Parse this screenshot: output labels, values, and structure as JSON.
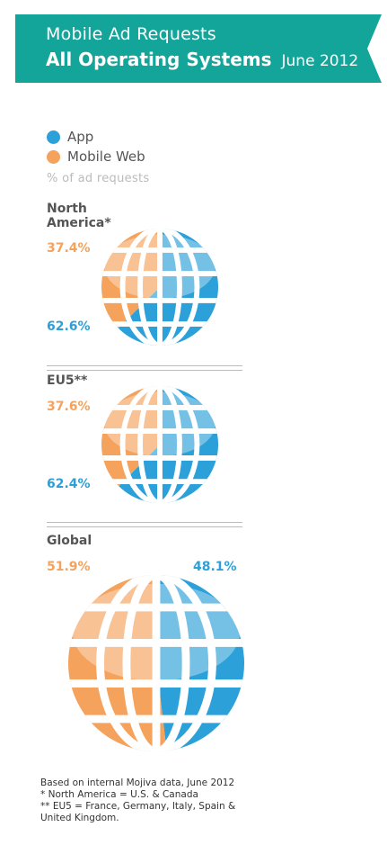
{
  "header": {
    "line1": "Mobile Ad Requests",
    "line2": "All Operating Systems",
    "date": "June 2012",
    "color": "#13a59a"
  },
  "legend": {
    "items": [
      {
        "label": "App",
        "color": "#2ca0d8"
      },
      {
        "label": "Mobile Web",
        "color": "#f5a25c"
      }
    ],
    "note": "% of ad requests"
  },
  "chart_data": [
    {
      "type": "pie",
      "title": "North America*",
      "categories": [
        "Mobile Web",
        "App"
      ],
      "values": [
        37.4,
        62.6
      ],
      "labels": [
        "37.4%",
        "62.6%"
      ]
    },
    {
      "type": "pie",
      "title": "EU5**",
      "categories": [
        "Mobile Web",
        "App"
      ],
      "values": [
        37.6,
        62.4
      ],
      "labels": [
        "37.6%",
        "62.4%"
      ]
    },
    {
      "type": "pie",
      "title": "Global",
      "categories": [
        "Mobile Web",
        "App"
      ],
      "values": [
        51.9,
        48.1
      ],
      "labels": [
        "51.9%",
        "48.1%"
      ]
    }
  ],
  "footnotes": [
    "Based on internal Mojiva data, June 2012",
    "* North America = U.S. & Canada",
    "** EU5 = France, Germany, Italy, Spain &",
    "United Kingdom."
  ]
}
